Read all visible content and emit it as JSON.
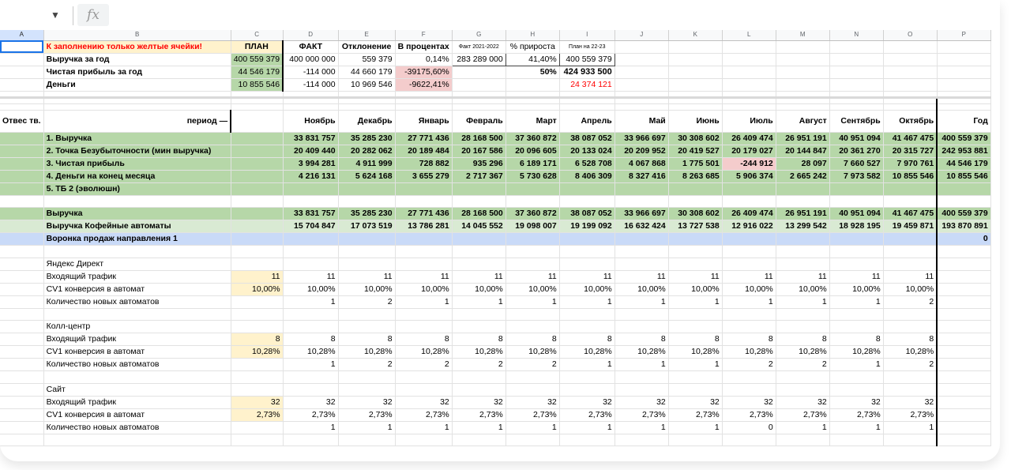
{
  "formula_bar": {
    "dropdown": "▼",
    "fx": "fx"
  },
  "columns": [
    "A",
    "B",
    "C",
    "D",
    "E",
    "F",
    "G",
    "H",
    "I",
    "J",
    "K",
    "L",
    "M",
    "N",
    "O",
    "P"
  ],
  "top": {
    "note": "К заполнению только желтые ячейки!",
    "plan": "ПЛАН",
    "fact": "ФАКТ",
    "deviation": "Отклонение",
    "percent": "В процентах",
    "fact_prev": "Факт 2021-2022",
    "growth": "% прироста",
    "plan_next": "План на 22-23",
    "rows": [
      {
        "label": "Выручка за год",
        "plan": "400 559 379",
        "fact": "400 000 000",
        "dev": "559 379",
        "pct": "0,14%",
        "prev": "283 289 000",
        "growth": "41,40%",
        "next": "400 559 379"
      },
      {
        "label": "Чистая прибыль за год",
        "plan": "44 546 179",
        "fact": "-114 000",
        "dev": "44 660 179",
        "pct": "-39175,60%",
        "prev": "",
        "growth": "50%",
        "next": "424 933 500"
      },
      {
        "label": "Деньги",
        "plan": "10 855 546",
        "fact": "-114 000",
        "dev": "10 969 546",
        "pct": "-9622,41%",
        "prev": "",
        "growth": "",
        "next": "24 374 121"
      }
    ]
  },
  "header": {
    "resp": "Отвес тв.",
    "period": "период —",
    "months": [
      "Ноябрь",
      "Декабрь",
      "Январь",
      "Февраль",
      "Март",
      "Апрель",
      "Май",
      "Июнь",
      "Июль",
      "Август",
      "Сентябрь",
      "Октябрь"
    ],
    "year": "Год"
  },
  "summary": [
    {
      "label": "1. Выручка",
      "values": [
        "33 831 757",
        "35 285 230",
        "27 771 436",
        "28 168 500",
        "37 360 872",
        "38 087 052",
        "33 966 697",
        "30 308 602",
        "26 409 474",
        "26 951 191",
        "40 951 094",
        "41 467 475"
      ],
      "year": "400 559 379"
    },
    {
      "label": "2. Точка Безубыточности (мин выручка)",
      "values": [
        "20 409 440",
        "20 282 062",
        "20 189 484",
        "20 167 586",
        "20 096 605",
        "20 133 024",
        "20 209 952",
        "20 419 527",
        "20 179 027",
        "20 144 847",
        "20 361 270",
        "20 315 727"
      ],
      "year": "242 953 881"
    },
    {
      "label": "3. Чистая прибыль",
      "values": [
        "3 994 281",
        "4 911 999",
        "728 882",
        "935 296",
        "6 189 171",
        "6 528 708",
        "4 067 868",
        "1 775 501",
        "-244 912",
        "28 097",
        "7 660 527",
        "7 970 761"
      ],
      "year": "44 546 179"
    },
    {
      "label": "4. Деньги на конец месяца",
      "values": [
        "4 216 131",
        "5 624 168",
        "3 655 279",
        "2 717 367",
        "5 730 628",
        "8 406 309",
        "8 327 416",
        "8 263 685",
        "5 906 374",
        "2 665 242",
        "7 973 582",
        "10 855 546"
      ],
      "year": "10 855 546"
    },
    {
      "label": "5. ТБ 2 (эволюшн)"
    }
  ],
  "revenue": {
    "label": "Выручка",
    "values": [
      "33 831 757",
      "35 285 230",
      "27 771 436",
      "28 168 500",
      "37 360 872",
      "38 087 052",
      "33 966 697",
      "30 308 602",
      "26 409 474",
      "26 951 191",
      "40 951 094",
      "41 467 475"
    ],
    "year": "400 559 379"
  },
  "coffee": {
    "label": "Выручка Кофейные автоматы",
    "values": [
      "15 704 847",
      "17 073 519",
      "13 786 281",
      "14 045 552",
      "19 098 007",
      "19 199 092",
      "16 632 424",
      "13 727 538",
      "12 916 022",
      "13 299 542",
      "18 928 195",
      "19 459 871"
    ],
    "year": "193 870 891"
  },
  "funnel": {
    "label": "Воронка продаж направления 1",
    "year": "0"
  },
  "channels": [
    {
      "name": "Яндекс Директ",
      "traffic_label": "Входящий трафик",
      "cv_label": "CV1 конверсия в автомат",
      "count_label": "Количество новых автоматов",
      "traffic_plan": "11",
      "cv_plan": "10,00%",
      "traffic": [
        "11",
        "11",
        "11",
        "11",
        "11",
        "11",
        "11",
        "11",
        "11",
        "11",
        "11",
        "11"
      ],
      "cv": [
        "10,00%",
        "10,00%",
        "10,00%",
        "10,00%",
        "10,00%",
        "10,00%",
        "10,00%",
        "10,00%",
        "10,00%",
        "10,00%",
        "10,00%",
        "10,00%"
      ],
      "count": [
        "1",
        "2",
        "1",
        "1",
        "1",
        "1",
        "1",
        "1",
        "1",
        "1",
        "1",
        "2"
      ]
    },
    {
      "name": "Колл-центр",
      "traffic_label": "Входящий трафик",
      "cv_label": "CV1 конверсия в автомат",
      "count_label": "Количество новых автоматов",
      "traffic_plan": "8",
      "cv_plan": "10,28%",
      "traffic": [
        "8",
        "8",
        "8",
        "8",
        "8",
        "8",
        "8",
        "8",
        "8",
        "8",
        "8",
        "8"
      ],
      "cv": [
        "10,28%",
        "10,28%",
        "10,28%",
        "10,28%",
        "10,28%",
        "10,28%",
        "10,28%",
        "10,28%",
        "10,28%",
        "10,28%",
        "10,28%",
        "10,28%"
      ],
      "count": [
        "1",
        "2",
        "2",
        "2",
        "2",
        "1",
        "1",
        "1",
        "2",
        "2",
        "1",
        "2"
      ]
    },
    {
      "name": "Сайт",
      "traffic_label": "Входящий трафик",
      "cv_label": "CV1 конверсия в автомат",
      "count_label": "Количество новых автоматов",
      "traffic_plan": "32",
      "cv_plan": "2,73%",
      "traffic": [
        "32",
        "32",
        "32",
        "32",
        "32",
        "32",
        "32",
        "32",
        "32",
        "32",
        "32",
        "32"
      ],
      "cv": [
        "2,73%",
        "2,73%",
        "2,73%",
        "2,73%",
        "2,73%",
        "2,73%",
        "2,73%",
        "2,73%",
        "2,73%",
        "2,73%",
        "2,73%",
        "2,73%"
      ],
      "count": [
        "1",
        "1",
        "1",
        "1",
        "1",
        "1",
        "1",
        "1",
        "0",
        "1",
        "1",
        "1"
      ]
    }
  ]
}
